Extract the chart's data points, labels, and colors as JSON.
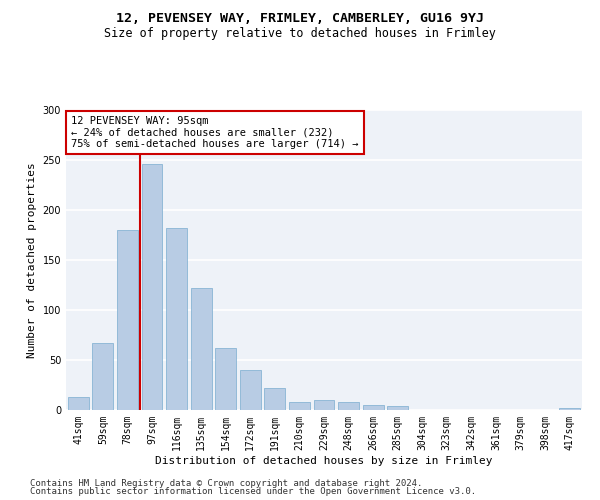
{
  "title1": "12, PEVENSEY WAY, FRIMLEY, CAMBERLEY, GU16 9YJ",
  "title2": "Size of property relative to detached houses in Frimley",
  "xlabel": "Distribution of detached houses by size in Frimley",
  "ylabel": "Number of detached properties",
  "categories": [
    "41sqm",
    "59sqm",
    "78sqm",
    "97sqm",
    "116sqm",
    "135sqm",
    "154sqm",
    "172sqm",
    "191sqm",
    "210sqm",
    "229sqm",
    "248sqm",
    "266sqm",
    "285sqm",
    "304sqm",
    "323sqm",
    "342sqm",
    "361sqm",
    "379sqm",
    "398sqm",
    "417sqm"
  ],
  "values": [
    13,
    67,
    180,
    246,
    182,
    122,
    62,
    40,
    22,
    8,
    10,
    8,
    5,
    4,
    0,
    0,
    0,
    0,
    0,
    0,
    2
  ],
  "bar_color": "#b8cce4",
  "bar_edge_color": "#7aaccf",
  "annotation_title": "12 PEVENSEY WAY: 95sqm",
  "annotation_line1": "← 24% of detached houses are smaller (232)",
  "annotation_line2": "75% of semi-detached houses are larger (714) →",
  "annotation_box_color": "#ffffff",
  "annotation_box_edge": "#cc0000",
  "vline_color": "#cc0000",
  "vline_x": 2.5,
  "ylim": [
    0,
    300
  ],
  "yticks": [
    0,
    50,
    100,
    150,
    200,
    250,
    300
  ],
  "background_color": "#eef2f8",
  "footer1": "Contains HM Land Registry data © Crown copyright and database right 2024.",
  "footer2": "Contains public sector information licensed under the Open Government Licence v3.0.",
  "title1_fontsize": 9.5,
  "title2_fontsize": 8.5,
  "xlabel_fontsize": 8,
  "ylabel_fontsize": 8,
  "annotation_fontsize": 7.5,
  "tick_fontsize": 7,
  "footer_fontsize": 6.5
}
